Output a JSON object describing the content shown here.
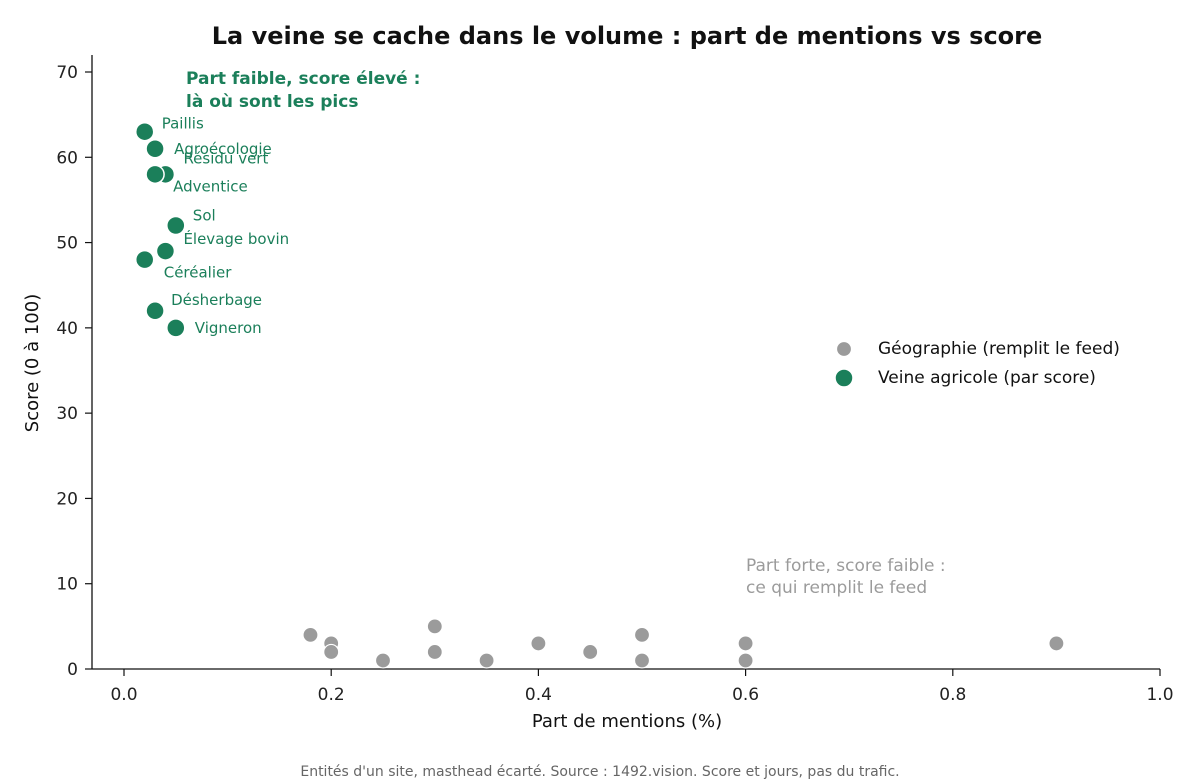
{
  "colors": {
    "accent": "#1b7f5a",
    "muted": "#9b9b9b"
  },
  "chart_data": {
    "type": "scatter",
    "title": "La veine se cache dans le volume : part de mentions vs score",
    "xlabel": "Part de mentions (%)",
    "ylabel": "Score (0 à 100)",
    "xlim": [
      -0.03,
      1.0
    ],
    "ylim": [
      0,
      72
    ],
    "xticks": [
      0.0,
      0.2,
      0.4,
      0.6,
      0.8,
      1.0
    ],
    "xtick_labels": [
      "0.0",
      "0.2",
      "0.4",
      "0.6",
      "0.8",
      "1.0"
    ],
    "yticks": [
      0,
      10,
      20,
      30,
      40,
      50,
      60,
      70
    ],
    "ytick_labels": [
      "0",
      "10",
      "20",
      "30",
      "40",
      "50",
      "60",
      "70"
    ],
    "grid": false,
    "legend_position": "center-right",
    "series": [
      {
        "name": "Géographie (remplit le feed)",
        "color": "#9b9b9b",
        "points": [
          {
            "x": 0.18,
            "y": 4
          },
          {
            "x": 0.2,
            "y": 3
          },
          {
            "x": 0.2,
            "y": 2
          },
          {
            "x": 0.25,
            "y": 1
          },
          {
            "x": 0.3,
            "y": 5
          },
          {
            "x": 0.3,
            "y": 2
          },
          {
            "x": 0.35,
            "y": 1
          },
          {
            "x": 0.4,
            "y": 3
          },
          {
            "x": 0.45,
            "y": 2
          },
          {
            "x": 0.5,
            "y": 4
          },
          {
            "x": 0.5,
            "y": 1
          },
          {
            "x": 0.6,
            "y": 3
          },
          {
            "x": 0.6,
            "y": 1
          },
          {
            "x": 0.9,
            "y": 3
          }
        ]
      },
      {
        "name": "Veine agricole (par score)",
        "color": "#1b7f5a",
        "points": [
          {
            "x": 0.02,
            "y": 63,
            "label": "Paillis"
          },
          {
            "x": 0.03,
            "y": 61,
            "label": "Agroécologie"
          },
          {
            "x": 0.04,
            "y": 58,
            "label": "Résidu vert"
          },
          {
            "x": 0.03,
            "y": 58,
            "label": "Adventice"
          },
          {
            "x": 0.05,
            "y": 52,
            "label": "Sol"
          },
          {
            "x": 0.04,
            "y": 49,
            "label": "Élevage bovin"
          },
          {
            "x": 0.02,
            "y": 48,
            "label": "Céréalier"
          },
          {
            "x": 0.03,
            "y": 42,
            "label": "Désherbage"
          },
          {
            "x": 0.05,
            "y": 40,
            "label": "Vigneron"
          }
        ]
      }
    ],
    "annotations": [
      {
        "lines": [
          "Part faible, score élevé :",
          "là où sont les pics"
        ],
        "style": "accent"
      },
      {
        "lines": [
          "Part forte, score faible :",
          "ce qui remplit le feed"
        ],
        "style": "muted"
      }
    ],
    "caption": "Entités d'un site, masthead écarté. Source : 1492.vision. Score et jours, pas du trafic."
  }
}
